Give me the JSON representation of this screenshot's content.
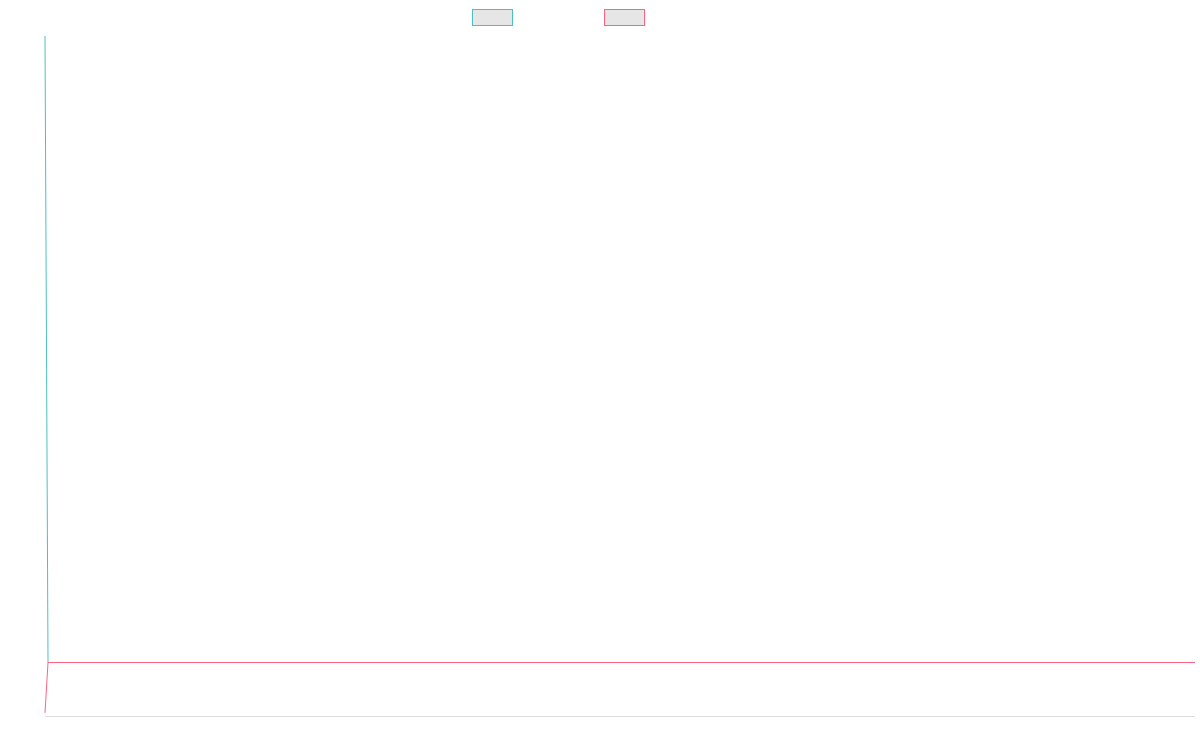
{
  "chart_data": {
    "type": "line",
    "title": "",
    "xlabel": "",
    "ylabel": "",
    "categories": [
      "",
      "",
      "",
      "",
      "",
      "",
      "",
      "",
      "",
      "",
      "",
      "",
      "",
      "",
      "",
      "",
      "",
      "",
      "",
      "",
      "",
      "",
      "",
      "",
      ""
    ],
    "series": [
      {
        "name": "",
        "color": "#4bc0c0",
        "values": [
          100,
          0.5,
          0.5,
          0.5,
          0.5,
          0.5,
          0.5,
          0.5,
          0.5,
          0.5,
          0.5,
          0.5,
          0.5,
          0.5,
          0.5,
          0.5,
          0.5,
          0.5,
          0.5,
          0.5,
          0.5,
          0.5,
          0.5,
          0.5,
          0.5
        ]
      },
      {
        "name": "",
        "color": "#ff6384",
        "values": [
          -7.5,
          0.5,
          0.5,
          0.5,
          0.5,
          0.5,
          0.5,
          0.5,
          0.5,
          0.5,
          0.5,
          0.5,
          0.5,
          0.5,
          0.5,
          0.5,
          0.5,
          0.5,
          0.5,
          0.5,
          0.5,
          0.5,
          0.5,
          0.5,
          0.5
        ]
      }
    ],
    "ylim": [
      -8,
      100
    ],
    "grid": false,
    "legend_position": "top",
    "baseline_color": "#dddddd"
  }
}
